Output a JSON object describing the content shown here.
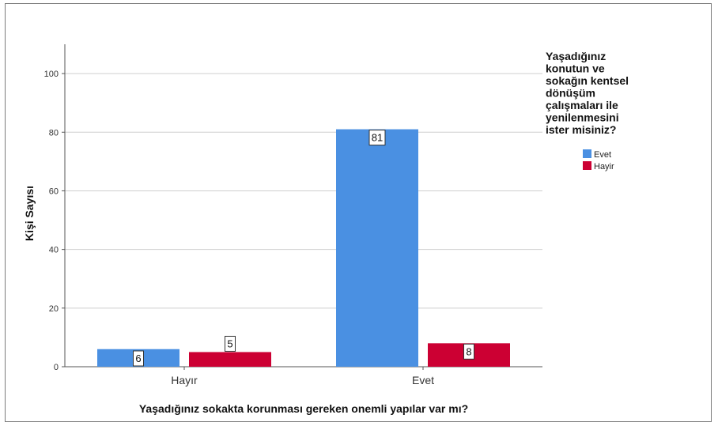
{
  "chart_data": {
    "type": "bar",
    "categories": [
      "Hayır",
      "Evet"
    ],
    "series": [
      {
        "name": "Evet",
        "values": [
          6,
          81
        ],
        "color": "#4a90e2"
      },
      {
        "name": "Hayir",
        "values": [
          5,
          8
        ],
        "color": "#cc0033"
      }
    ],
    "data_labels": [
      [
        "6",
        "81"
      ],
      [
        "5",
        "8"
      ]
    ],
    "xlabel": "Yaşadığınız sokakta korunması gereken onemli yapılar var mı?",
    "ylabel": "Kişi Sayısı",
    "ylim": [
      0,
      110
    ],
    "yticks": [
      0,
      20,
      40,
      60,
      80,
      100
    ],
    "grid": true,
    "legend": {
      "title_lines": [
        "Yaşadığınız",
        "konutun ve",
        "sokağın kentsel",
        "dönüşüm",
        "çalışmaları ile",
        "yenilenmesini",
        "ister misiniz?"
      ],
      "placement": "right"
    }
  }
}
